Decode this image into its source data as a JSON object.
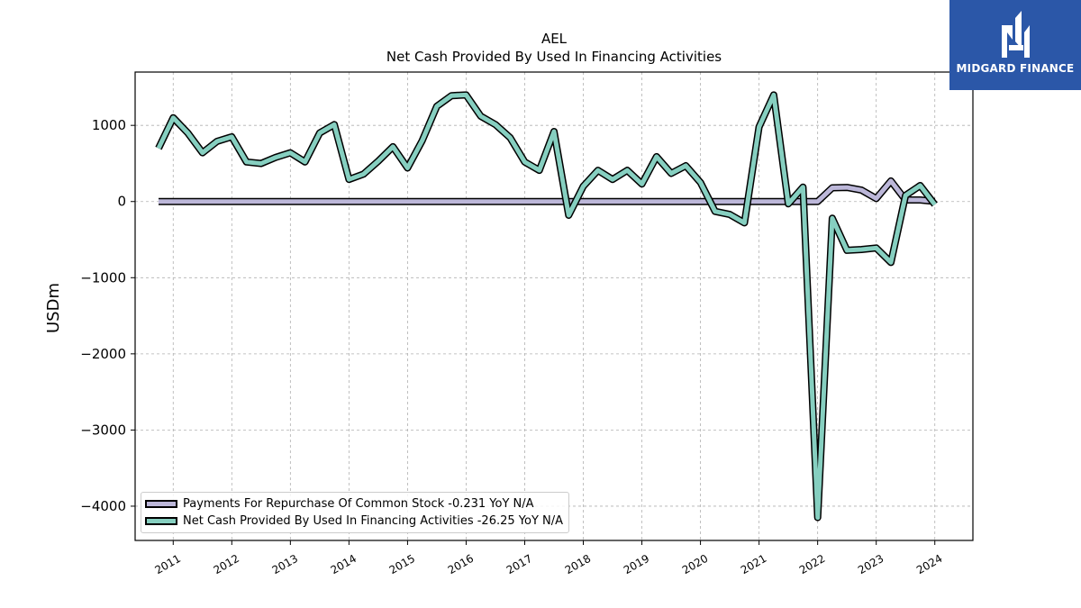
{
  "logo": {
    "text": "MIDGARD FINANCE",
    "icon": "mf-monogram-icon"
  },
  "chart_data": {
    "type": "line",
    "title": "AEL",
    "subtitle": "Net Cash Provided By Used In Financing Activities",
    "ylabel": "USDm",
    "xlabel": "",
    "ylim": [
      -4450,
      1700
    ],
    "xlim": [
      2010.35,
      2024.65
    ],
    "yticks": [
      1000,
      0,
      -1000,
      -2000,
      -3000,
      -4000
    ],
    "ytick_labels": [
      "1000",
      "0",
      "−1000",
      "−2000",
      "−3000",
      "−4000"
    ],
    "xticks": [
      2011,
      2012,
      2013,
      2014,
      2015,
      2016,
      2017,
      2018,
      2019,
      2020,
      2021,
      2022,
      2023,
      2024
    ],
    "xtick_labels": [
      "2011",
      "2012",
      "2013",
      "2014",
      "2015",
      "2016",
      "2017",
      "2018",
      "2019",
      "2020",
      "2021",
      "2022",
      "2023",
      "2024"
    ],
    "grid": true,
    "legend_position": "lower-left",
    "series": [
      {
        "name": "Payments For Repurchase Of Common Stock",
        "legend_label": "Payments For Repurchase Of Common Stock  -0.231 YoY N/A",
        "color": "#bcb7d9",
        "x": [
          2010.75,
          2021.25,
          2021.5,
          2021.75,
          2022.0,
          2022.25,
          2022.5,
          2022.75,
          2023.0,
          2023.25,
          2023.5,
          2023.75,
          2024.0
        ],
        "values": [
          0,
          0,
          0,
          0,
          0,
          180,
          185,
          150,
          40,
          270,
          20,
          20,
          0
        ]
      },
      {
        "name": "Net Cash Provided By Used In Financing Activities",
        "legend_label": "Net Cash Provided By Used In Financing Activities  -26.25 YoY N/A",
        "color": "#86cfc0",
        "x": [
          2010.75,
          2011.0,
          2011.25,
          2011.5,
          2011.75,
          2012.0,
          2012.25,
          2012.5,
          2012.75,
          2013.0,
          2013.25,
          2013.5,
          2013.75,
          2014.0,
          2014.25,
          2014.5,
          2014.75,
          2015.0,
          2015.25,
          2015.5,
          2015.75,
          2016.0,
          2016.25,
          2016.5,
          2016.75,
          2017.0,
          2017.25,
          2017.5,
          2017.75,
          2018.0,
          2018.25,
          2018.5,
          2018.75,
          2019.0,
          2019.25,
          2019.5,
          2019.75,
          2020.0,
          2020.25,
          2020.5,
          2020.75,
          2021.0,
          2021.25,
          2021.5,
          2021.75,
          2022.0,
          2022.25,
          2022.5,
          2022.75,
          2023.0,
          2023.25,
          2023.5,
          2023.75,
          2024.0
        ],
        "values": [
          700,
          1100,
          900,
          640,
          790,
          850,
          520,
          500,
          580,
          640,
          520,
          900,
          1010,
          290,
          360,
          530,
          720,
          440,
          800,
          1250,
          1390,
          1400,
          1120,
          1010,
          840,
          520,
          410,
          920,
          -180,
          200,
          410,
          290,
          410,
          230,
          590,
          370,
          470,
          250,
          -130,
          -170,
          -280,
          980,
          1400,
          -30,
          190,
          -4150,
          -220,
          -640,
          -630,
          -610,
          -800,
          80,
          210,
          -40
        ]
      }
    ]
  }
}
